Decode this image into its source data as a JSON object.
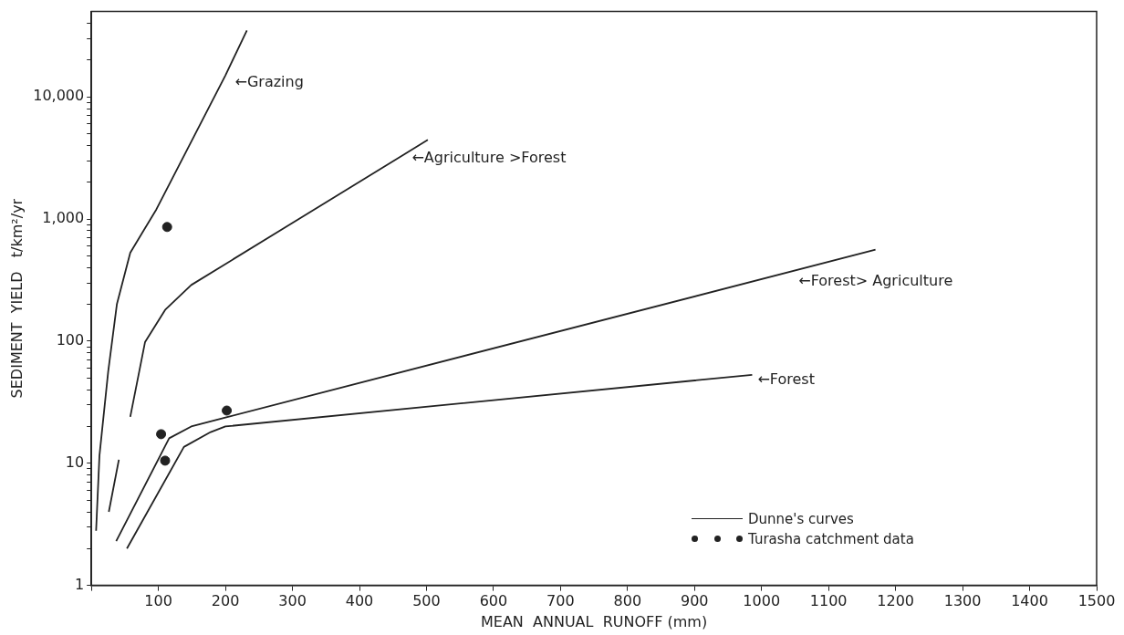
{
  "chart_data": {
    "type": "line",
    "xlabel": "MEAN  ANNUAL  RUNOFF (mm)",
    "ylabel": "SEDIMENT  YIELD   t/km²/yr",
    "xlim": [
      0,
      1500
    ],
    "xticks": [
      {
        "value": 0,
        "label": null
      },
      100,
      200,
      300,
      400,
      500,
      600,
      700,
      800,
      900,
      1000,
      1100,
      1200,
      1300,
      1400,
      1500
    ],
    "ylim": [
      1,
      50000
    ],
    "yticks": [
      1,
      {
        "value": 2,
        "label": null
      },
      {
        "value": 3,
        "label": null
      },
      {
        "value": 4,
        "label": null
      },
      {
        "value": 5,
        "label": null
      },
      {
        "value": 6,
        "label": null
      },
      {
        "value": 7,
        "label": null
      },
      {
        "value": 8,
        "label": null
      },
      {
        "value": 9,
        "label": null
      },
      10,
      {
        "value": 20,
        "label": null
      },
      {
        "value": 30,
        "label": null
      },
      {
        "value": 40,
        "label": null
      },
      {
        "value": 50,
        "label": null
      },
      {
        "value": 60,
        "label": null
      },
      {
        "value": 70,
        "label": null
      },
      {
        "value": 80,
        "label": null
      },
      {
        "value": 90,
        "label": null
      },
      100,
      {
        "value": 200,
        "label": null
      },
      {
        "value": 300,
        "label": null
      },
      {
        "value": 400,
        "label": null
      },
      {
        "value": 500,
        "label": null
      },
      {
        "value": 600,
        "label": null
      },
      {
        "value": 700,
        "label": null
      },
      {
        "value": 800,
        "label": null
      },
      {
        "value": 900,
        "label": null
      },
      {
        "value": 1000,
        "label": "1,000"
      },
      {
        "value": 2000,
        "label": null
      },
      {
        "value": 3000,
        "label": null
      },
      {
        "value": 4000,
        "label": null
      },
      {
        "value": 5000,
        "label": null
      },
      {
        "value": 6000,
        "label": null
      },
      {
        "value": 7000,
        "label": null
      },
      {
        "value": 8000,
        "label": null
      },
      {
        "value": 9000,
        "label": null
      },
      {
        "value": 10000,
        "label": "10,000"
      },
      {
        "value": 20000,
        "label": null
      },
      {
        "value": 30000,
        "label": null
      },
      {
        "value": 40000,
        "label": null
      }
    ],
    "log": "y",
    "grid": false,
    "legend": "bottom right",
    "line_style": "solid",
    "series": [
      {
        "name": "Dunne's curves",
        "marker": "none",
        "color": "#222222",
        "x": [
          7,
          12,
          25,
          38,
          58,
          97,
          200,
          232
        ],
        "values": [
          2.8,
          11.5,
          56,
          200,
          530,
          1200,
          15000,
          35000
        ]
      },
      {
        "marker": "none",
        "color": "#222222",
        "x": [
          26,
          41,
          50,
          58,
          80,
          110,
          149,
          470,
          502
        ],
        "values": [
          4,
          10.7,
          null,
          24,
          98,
          180,
          288,
          3470,
          4450
        ]
      },
      {
        "marker": "none",
        "color": "#222222",
        "x": [
          37,
          116,
          149,
          204,
          1170
        ],
        "values": [
          2.3,
          16,
          20,
          24,
          560
        ]
      },
      {
        "marker": "none",
        "color": "#222222",
        "x": [
          53,
          138,
          178,
          200,
          986
        ],
        "values": [
          2,
          13.6,
          18,
          20,
          53
        ]
      },
      {
        "name": "Turasha catchment data",
        "type": "scatter",
        "marker": "circle",
        "color": "#222222",
        "x": [
          113,
          104,
          110,
          202
        ],
        "values": [
          860,
          17.3,
          10.5,
          27
        ]
      }
    ],
    "annotations": [
      {
        "text": "←Grazing",
        "x": 206,
        "y": 14500
      },
      {
        "text": "←Agriculture >Forest",
        "x": 470,
        "y": 3470
      },
      {
        "text": "←Forest> Agriculture",
        "x": 1047,
        "y": 340
      },
      {
        "text": "←Forest",
        "x": 986,
        "y": 53
      }
    ]
  }
}
